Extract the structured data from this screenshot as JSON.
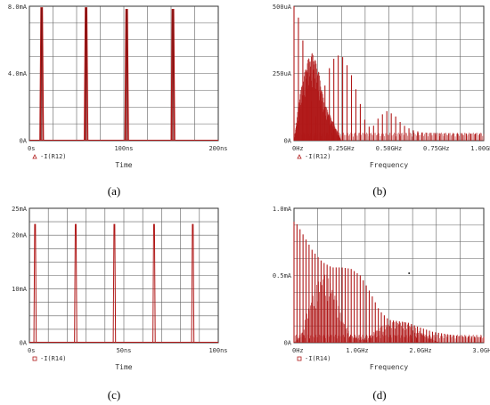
{
  "panels": [
    {
      "id": "a",
      "caption": "(a)",
      "chart_data": {
        "type": "line",
        "xlabel": "Time",
        "ylabel": "",
        "xlim": [
          0,
          200
        ],
        "ylim": [
          0,
          8
        ],
        "x_unit": "ns",
        "y_unit": "mA",
        "x_tick_labels": [
          "0s",
          "100ns",
          "200ns"
        ],
        "y_tick_labels": [
          "0A",
          "4.0mA",
          "8.0mA"
        ],
        "legend": "-I(R12)",
        "legend_marker": "triangle",
        "series": [
          {
            "name": "-I(R12)",
            "pulses": [
              {
                "x": 13,
                "y": 7.9
              },
              {
                "x": 60,
                "y": 7.9
              },
              {
                "x": 103,
                "y": 7.8
              },
              {
                "x": 152,
                "y": 7.8
              }
            ]
          }
        ]
      }
    },
    {
      "id": "b",
      "caption": "(b)",
      "chart_data": {
        "type": "bar",
        "xlabel": "Frequency",
        "ylabel": "",
        "xlim": [
          0,
          1.0
        ],
        "ylim": [
          0,
          500
        ],
        "x_unit": "GHz",
        "y_unit": "uA",
        "x_tick_labels": [
          "0Hz",
          "0.25GHz",
          "0.50GHz",
          "0.75GHz",
          "1.00GHz"
        ],
        "y_tick_labels": [
          "0A",
          "250uA",
          "500uA"
        ],
        "legend": "-I(R12)",
        "legend_marker": "triangle",
        "spectrum": {
          "harmonic_spacing": 0.0233,
          "envelope": [
            [
              0.0,
              500
            ],
            [
              0.02,
              470
            ],
            [
              0.05,
              360
            ],
            [
              0.08,
              200
            ],
            [
              0.11,
              80
            ],
            [
              0.14,
              130
            ],
            [
              0.18,
              260
            ],
            [
              0.22,
              320
            ],
            [
              0.26,
              310
            ],
            [
              0.3,
              250
            ],
            [
              0.34,
              160
            ],
            [
              0.38,
              60
            ],
            [
              0.41,
              45
            ],
            [
              0.45,
              90
            ],
            [
              0.49,
              110
            ],
            [
              0.53,
              95
            ],
            [
              0.57,
              60
            ],
            [
              0.62,
              40
            ],
            [
              0.68,
              30
            ],
            [
              0.75,
              28
            ],
            [
              0.85,
              26
            ],
            [
              1.0,
              26
            ]
          ],
          "secondary_envelope": [
            [
              0.0,
              0
            ],
            [
              0.03,
              170
            ],
            [
              0.07,
              300
            ],
            [
              0.1,
              330
            ],
            [
              0.13,
              260
            ],
            [
              0.16,
              140
            ],
            [
              0.2,
              80
            ],
            [
              0.25,
              0
            ]
          ]
        }
      }
    },
    {
      "id": "c",
      "caption": "(c)",
      "chart_data": {
        "type": "line",
        "xlabel": "Time",
        "ylabel": "",
        "xlim": [
          0,
          100
        ],
        "ylim": [
          0,
          25
        ],
        "x_unit": "ns",
        "y_unit": "mA",
        "x_tick_labels": [
          "0s",
          "50ns",
          "100ns"
        ],
        "y_tick_labels": [
          "0A",
          "10mA",
          "20mA",
          "25mA"
        ],
        "y_tick_values": [
          0,
          10,
          20,
          25
        ],
        "legend": "-I(R14)",
        "legend_marker": "square",
        "series": [
          {
            "name": "-I(R14)",
            "pulses": [
              {
                "x": 3,
                "y": 22
              },
              {
                "x": 24.5,
                "y": 22
              },
              {
                "x": 45,
                "y": 22
              },
              {
                "x": 66,
                "y": 22
              },
              {
                "x": 86.5,
                "y": 22
              }
            ]
          }
        ]
      }
    },
    {
      "id": "d",
      "caption": "(d)",
      "chart_data": {
        "type": "bar",
        "xlabel": "Frequency",
        "ylabel": "",
        "xlim": [
          0,
          3.0
        ],
        "ylim": [
          0,
          1.0
        ],
        "x_unit": "GHz",
        "y_unit": "mA",
        "x_tick_labels": [
          "0Hz",
          "1.0GHz",
          "2.0GHz",
          "3.0GHz"
        ],
        "y_tick_labels": [
          "0A",
          "0.5mA",
          "1.0mA"
        ],
        "legend": "-I(R14)",
        "legend_marker": "square",
        "spectrum": {
          "harmonic_spacing": 0.0476,
          "envelope": [
            [
              0.0,
              0.9
            ],
            [
              0.05,
              0.88
            ],
            [
              0.15,
              0.8
            ],
            [
              0.3,
              0.68
            ],
            [
              0.45,
              0.6
            ],
            [
              0.6,
              0.56
            ],
            [
              0.75,
              0.56
            ],
            [
              0.9,
              0.55
            ],
            [
              1.05,
              0.5
            ],
            [
              1.2,
              0.38
            ],
            [
              1.35,
              0.24
            ],
            [
              1.5,
              0.17
            ],
            [
              1.65,
              0.16
            ],
            [
              1.8,
              0.15
            ],
            [
              1.95,
              0.12
            ],
            [
              2.2,
              0.08
            ],
            [
              2.6,
              0.05
            ],
            [
              3.0,
              0.04
            ]
          ],
          "secondary_envelope": [
            [
              0.0,
              0
            ],
            [
              0.1,
              0.05
            ],
            [
              0.25,
              0.3
            ],
            [
              0.4,
              0.48
            ],
            [
              0.5,
              0.52
            ],
            [
              0.6,
              0.44
            ],
            [
              0.75,
              0.2
            ],
            [
              0.9,
              0.05
            ],
            [
              1.15,
              0.02
            ],
            [
              1.3,
              0.1
            ],
            [
              1.5,
              0.15
            ],
            [
              1.7,
              0.16
            ],
            [
              1.9,
              0.12
            ],
            [
              2.1,
              0.05
            ],
            [
              2.3,
              0.0
            ]
          ]
        },
        "annotations": [
          "•"
        ]
      }
    }
  ],
  "colors": {
    "trace": "#b01818",
    "trace_dark": "#6b0f0f",
    "grid": "#606060",
    "axis": "#333333"
  }
}
